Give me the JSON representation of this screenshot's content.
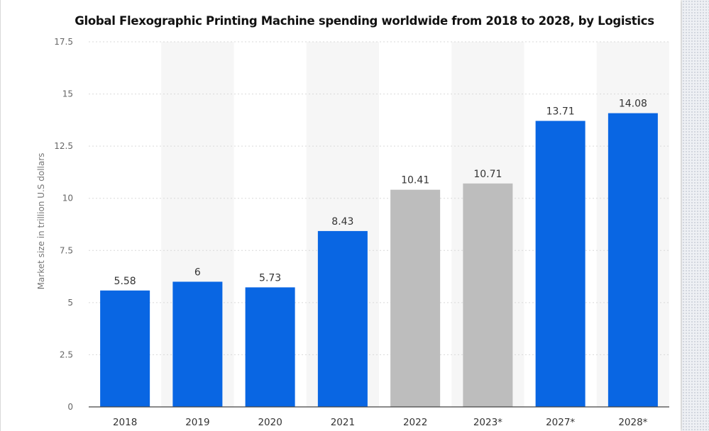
{
  "chart_data": {
    "type": "bar",
    "title": "Global Flexographic Printing Machine spending worldwide from 2018 to 2028, by Logistics",
    "xlabel": "",
    "ylabel": "Market size in trillion U.S dollars",
    "categories": [
      "2018",
      "2019",
      "2020",
      "2021",
      "2022",
      "2023*",
      "2027*",
      "2028*"
    ],
    "values": [
      5.58,
      6,
      5.73,
      8.43,
      10.41,
      10.71,
      13.71,
      14.08
    ],
    "value_labels": [
      "5.58",
      "6",
      "5.73",
      "8.43",
      "10.41",
      "10.71",
      "13.71",
      "14.08"
    ],
    "bar_colors": [
      "#0966e3",
      "#0966e3",
      "#0966e3",
      "#0966e3",
      "#bdbdbd",
      "#bdbdbd",
      "#0966e3",
      "#0966e3"
    ],
    "ylim": [
      0,
      17.5
    ],
    "yticks": [
      0,
      2.5,
      5,
      7.5,
      10,
      12.5,
      15,
      17.5
    ],
    "ytick_labels": [
      "0",
      "2.5",
      "5",
      "7.5",
      "10",
      "12.5",
      "15",
      "17.5"
    ],
    "grid": true,
    "legend": "none"
  }
}
